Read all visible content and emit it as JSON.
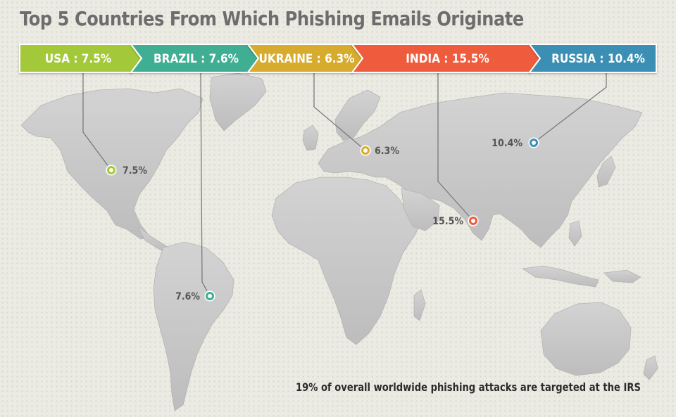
{
  "title": "Top 5 Countries From Which Phishing Emails Originate",
  "countries": [
    {
      "label": "USA : 7.5%",
      "pin_label": "7.5%",
      "color": "#a3c93a",
      "pin_side": "right"
    },
    {
      "label": "BRAZIL : 7.6%",
      "pin_label": "7.6%",
      "color": "#3fae93",
      "pin_side": "left"
    },
    {
      "label": "UKRAINE : 6.3%",
      "pin_label": "6.3%",
      "color": "#d7ab2e",
      "pin_side": "right"
    },
    {
      "label": "INDIA : 15.5%",
      "pin_label": "15.5%",
      "color": "#ef5b3c",
      "pin_side": "left"
    },
    {
      "label": "RUSSIA : 10.4%",
      "pin_label": "10.4%",
      "color": "#3a8fb5",
      "pin_side": "left"
    }
  ],
  "map_color": "#c9c9c9",
  "footnote": "19% of overall worldwide phishing attacks are targeted at the IRS"
}
